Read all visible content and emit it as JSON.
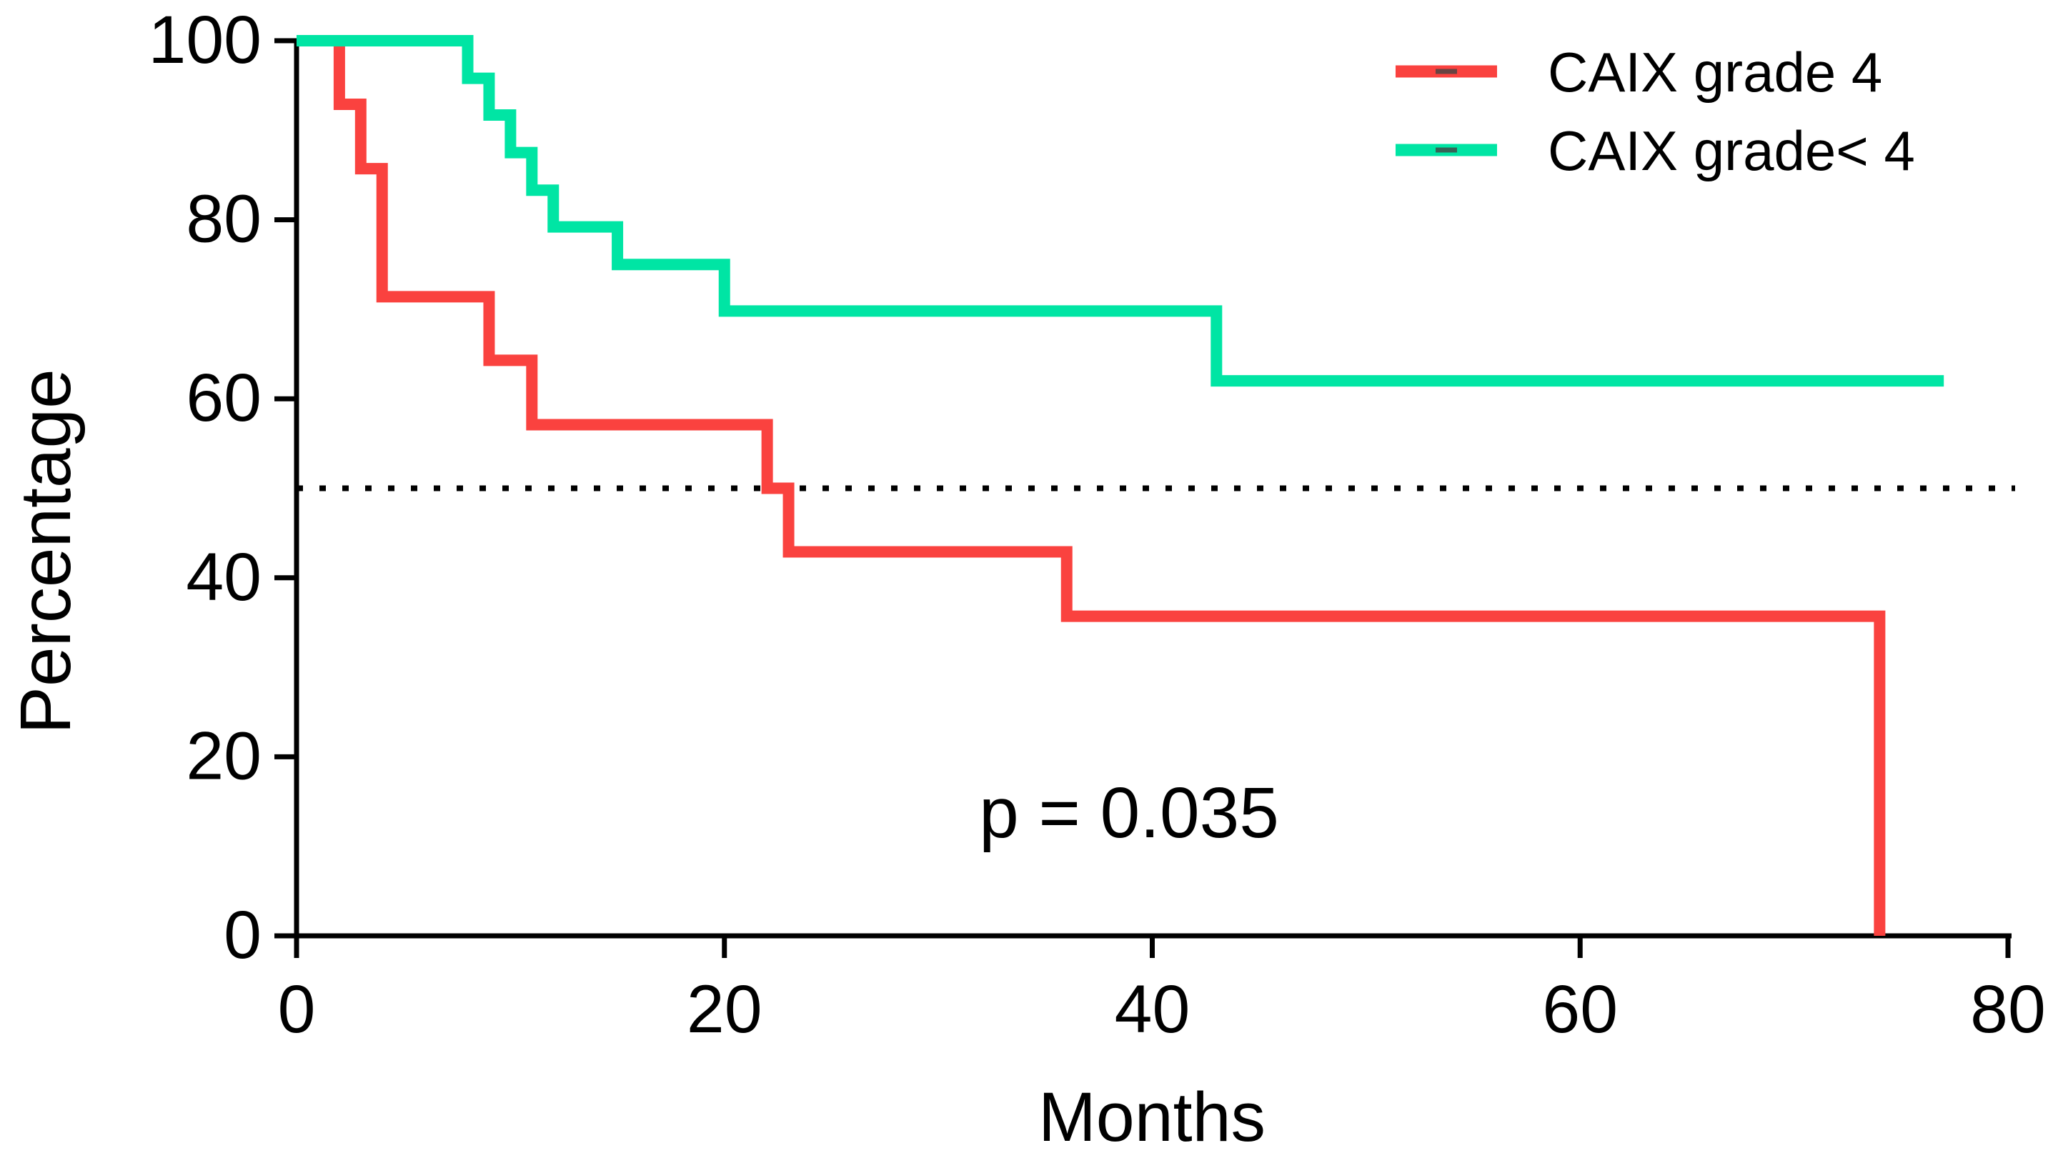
{
  "figure": {
    "ylabel": "Percentage",
    "xlabel": "Months",
    "annotation": "p = 0.035",
    "background_color": "#ffffff",
    "axis_color": "#000000"
  },
  "chart_data": {
    "type": "line",
    "subtype": "kaplan-meier-step",
    "title": "",
    "xlabel": "Months",
    "ylabel": "Percentage",
    "xlim": [
      0,
      80
    ],
    "ylim": [
      0,
      100
    ],
    "xticks": [
      0,
      20,
      40,
      60,
      80
    ],
    "yticks": [
      0,
      20,
      40,
      60,
      80,
      100
    ],
    "grid": false,
    "legend_position": "top-right",
    "reference_line": {
      "y": 50,
      "style": "dotted",
      "color": "#000000"
    },
    "annotation": {
      "text": "p = 0.035",
      "x_months": 39,
      "y_percent": 14
    },
    "series": [
      {
        "name": "CAIX grade 4",
        "color": "#FA423F",
        "end_x": 74,
        "steps": [
          [
            0,
            100
          ],
          [
            2,
            92.9
          ],
          [
            3,
            85.7
          ],
          [
            4,
            71.4
          ],
          [
            9,
            64.3
          ],
          [
            11,
            57.1
          ],
          [
            22,
            50.0
          ],
          [
            23,
            42.9
          ],
          [
            36,
            35.7
          ],
          [
            74,
            0
          ]
        ]
      },
      {
        "name": "CAIX  grade< 4",
        "color": "#00E5A4",
        "end_x": 77,
        "steps": [
          [
            0,
            100
          ],
          [
            8,
            95.8
          ],
          [
            9,
            91.7
          ],
          [
            10,
            87.5
          ],
          [
            11,
            83.3
          ],
          [
            12,
            79.2
          ],
          [
            15,
            75.0
          ],
          [
            20,
            69.8
          ],
          [
            43,
            62.0
          ]
        ]
      }
    ]
  }
}
